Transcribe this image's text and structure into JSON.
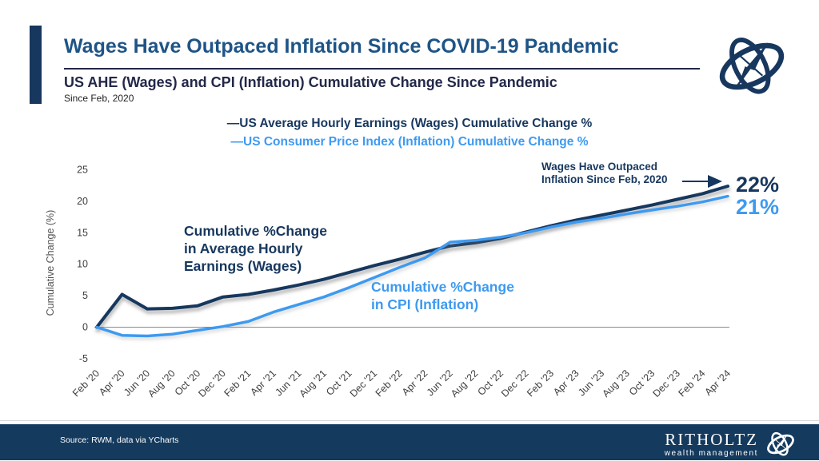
{
  "header": {
    "title": "Wages Have Outpaced Inflation Since COVID-19 Pandemic",
    "subtitle": "US AHE (Wages) and CPI (Inflation) Cumulative Change Since Pandemic",
    "date_note": "Since Feb, 2020"
  },
  "legend": {
    "wages": "—US Average Hourly Earnings (Wages) Cumulative Change %",
    "cpi": "—US Consumer Price Index (Inflation) Cumulative Change %"
  },
  "annotations": {
    "wages_lines": [
      "Cumulative %Change",
      "in Average Hourly",
      "Earnings (Wages)"
    ],
    "cpi_lines": [
      "Cumulative %Change",
      "in CPI (Inflation)"
    ],
    "outpaced_lines": [
      "Wages Have Outpaced",
      "Inflation Since Feb, 2020"
    ],
    "wages_end_label": "22%",
    "cpi_end_label": "21%"
  },
  "colors": {
    "wages_navy": "#17375E",
    "cpi_blue": "#3E9AF0",
    "title_blue": "#1E5486",
    "footer_navy": "#143A5E"
  },
  "chart_data": {
    "type": "line",
    "title": "US AHE (Wages) and CPI (Inflation) Cumulative Change Since Pandemic",
    "xlabel": "",
    "ylabel": "Cumulative Change (%)",
    "ylim": [
      -5,
      25
    ],
    "y_ticks": [
      -5,
      0,
      5,
      10,
      15,
      20,
      25
    ],
    "grid": false,
    "legend_position": "top",
    "categories": [
      "Feb '20",
      "Apr '20",
      "Jun '20",
      "Aug '20",
      "Oct '20",
      "Dec '20",
      "Feb '21",
      "Apr '21",
      "Jun '21",
      "Aug '21",
      "Oct '21",
      "Dec '21",
      "Feb '22",
      "Apr '22",
      "Jun '22",
      "Aug '22",
      "Oct '22",
      "Dec '22",
      "Feb '23",
      "Apr '23",
      "Jun '23",
      "Aug '23",
      "Oct '23",
      "Dec '23",
      "Feb '24",
      "Apr '24"
    ],
    "series": [
      {
        "name": "US Average Hourly Earnings (Wages) Cumulative Change %",
        "color": "#17375E",
        "values": [
          0,
          5.2,
          2.9,
          3.0,
          3.4,
          4.8,
          5.2,
          5.9,
          6.7,
          7.6,
          8.7,
          9.8,
          10.8,
          11.9,
          12.9,
          13.4,
          14.1,
          15.1,
          16.1,
          17.0,
          17.8,
          18.6,
          19.4,
          20.3,
          21.2,
          22.4
        ],
        "end_value_label": "22%"
      },
      {
        "name": "US Consumer Price Index (Inflation) Cumulative Change %",
        "color": "#3E9AF0",
        "values": [
          0,
          -1.3,
          -1.4,
          -1.1,
          -0.5,
          0.1,
          0.9,
          2.4,
          3.6,
          4.8,
          6.3,
          7.9,
          9.5,
          11.0,
          13.5,
          13.8,
          14.3,
          15.0,
          15.9,
          16.7,
          17.3,
          18.0,
          18.6,
          19.2,
          19.9,
          20.8
        ],
        "end_value_label": "21%"
      }
    ]
  },
  "footer": {
    "source": "Source: RWM, data via YCharts",
    "brand_name": "RITHOLTZ",
    "brand_sub": "wealth management",
    "logo_icon": "gyroscope-compass-icon"
  }
}
